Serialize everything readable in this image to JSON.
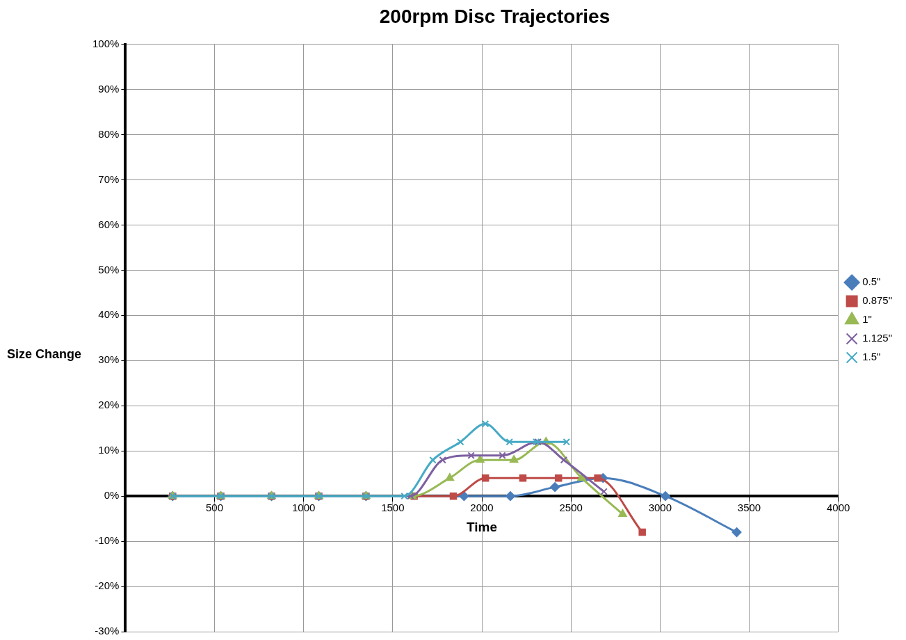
{
  "chart_data": {
    "type": "line",
    "title": "200rpm Disc Trajectories",
    "xlabel": "Time",
    "ylabel": "Size Change",
    "xlim": [
      0,
      4000
    ],
    "xticks": [
      {
        "value": 0,
        "label": null
      },
      500,
      1000,
      1500,
      2000,
      2500,
      3000,
      3500,
      4000
    ],
    "ylim": [
      -30,
      100
    ],
    "yticks": [
      {
        "value": -30,
        "label": "-30%"
      },
      {
        "value": -20,
        "label": "-20%"
      },
      {
        "value": -10,
        "label": "-10%"
      },
      {
        "value": 0,
        "label": "0%"
      },
      {
        "value": 10,
        "label": "10%"
      },
      {
        "value": 20,
        "label": "20%"
      },
      {
        "value": 30,
        "label": "30%"
      },
      {
        "value": 40,
        "label": "40%"
      },
      {
        "value": 50,
        "label": "50%"
      },
      {
        "value": 60,
        "label": "60%"
      },
      {
        "value": 70,
        "label": "70%"
      },
      {
        "value": 80,
        "label": "80%"
      },
      {
        "value": 90,
        "label": "90%"
      },
      {
        "value": 100,
        "label": "100%"
      }
    ],
    "grid": true,
    "legend": "right",
    "series": [
      {
        "name": "0.5\"",
        "color": "#4a7ebb",
        "marker": "diamond",
        "x": [
          265,
          535,
          820,
          1085,
          1350,
          1900,
          2160,
          2410,
          2680,
          3030,
          3430
        ],
        "values": [
          0,
          0,
          0,
          0,
          0,
          0,
          0,
          2,
          4,
          0,
          -8
        ]
      },
      {
        "name": "0.875\"",
        "color": "#be4b48",
        "marker": "square",
        "x": [
          265,
          535,
          820,
          1085,
          1350,
          1620,
          1840,
          2020,
          2230,
          2430,
          2650,
          2900
        ],
        "values": [
          0,
          0,
          0,
          0,
          0,
          0,
          0,
          4,
          4,
          4,
          4,
          -8
        ]
      },
      {
        "name": "1\"",
        "color": "#98b954",
        "marker": "triangle",
        "x": [
          265,
          535,
          820,
          1085,
          1350,
          1610,
          1820,
          1990,
          2180,
          2360,
          2560,
          2790
        ],
        "values": [
          0,
          0,
          0,
          0,
          0,
          0,
          4,
          8,
          8,
          12,
          4,
          -4
        ]
      },
      {
        "name": "1.125\"",
        "color": "#7d60a0",
        "marker": "cross",
        "x": [
          265,
          535,
          820,
          1085,
          1350,
          1600,
          1780,
          1940,
          2115,
          2315,
          2460,
          2685
        ],
        "values": [
          0,
          0,
          0,
          0,
          0,
          0,
          8,
          9,
          9,
          12,
          8,
          1
        ]
      },
      {
        "name": "1.5\"",
        "color": "#46aac5",
        "marker": "cross",
        "x": [
          265,
          535,
          820,
          1085,
          1350,
          1565,
          1725,
          1880,
          2020,
          2155,
          2305,
          2475
        ],
        "values": [
          0,
          0,
          0,
          0,
          0,
          0,
          8,
          12,
          16,
          12,
          12,
          12
        ]
      }
    ]
  }
}
